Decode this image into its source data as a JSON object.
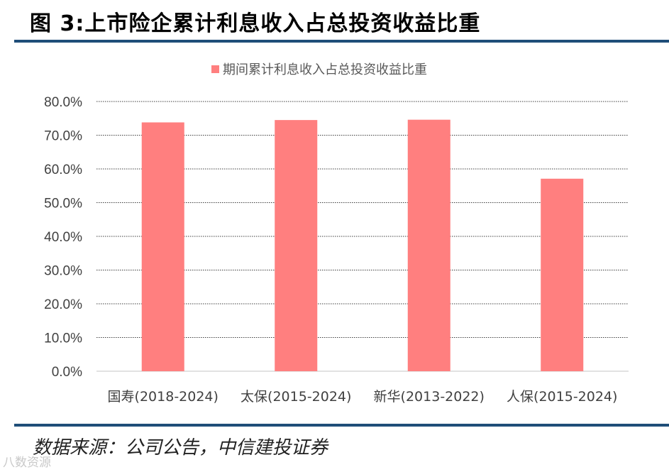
{
  "figure": {
    "title": "图 3:上市险企累计利息收入占总投资收益比重",
    "source": "数据来源：公司公告，中信建投证券",
    "watermark": "八数资源"
  },
  "colors": {
    "bar": "#ff7f7f",
    "rule": "#1f4e79",
    "grid": "#000000",
    "text": "#404040"
  },
  "chart_data": {
    "type": "bar",
    "categories": [
      "国寿(2018-2024)",
      "太保(2015-2024)",
      "新华(2013-2022)",
      "人保(2015-2024)"
    ],
    "series": [
      {
        "name": "期间累计利息收入占总投资收益比重",
        "values": [
          73.8,
          74.5,
          74.6,
          57.1
        ]
      }
    ],
    "ylim": [
      0,
      80
    ],
    "yticks": [
      0,
      10,
      20,
      30,
      40,
      50,
      60,
      70,
      80
    ],
    "ytick_labels": [
      "0.0%",
      "10.0%",
      "20.0%",
      "30.0%",
      "40.0%",
      "50.0%",
      "60.0%",
      "70.0%",
      "80.0%"
    ],
    "grid": true,
    "legend": "top-center"
  }
}
